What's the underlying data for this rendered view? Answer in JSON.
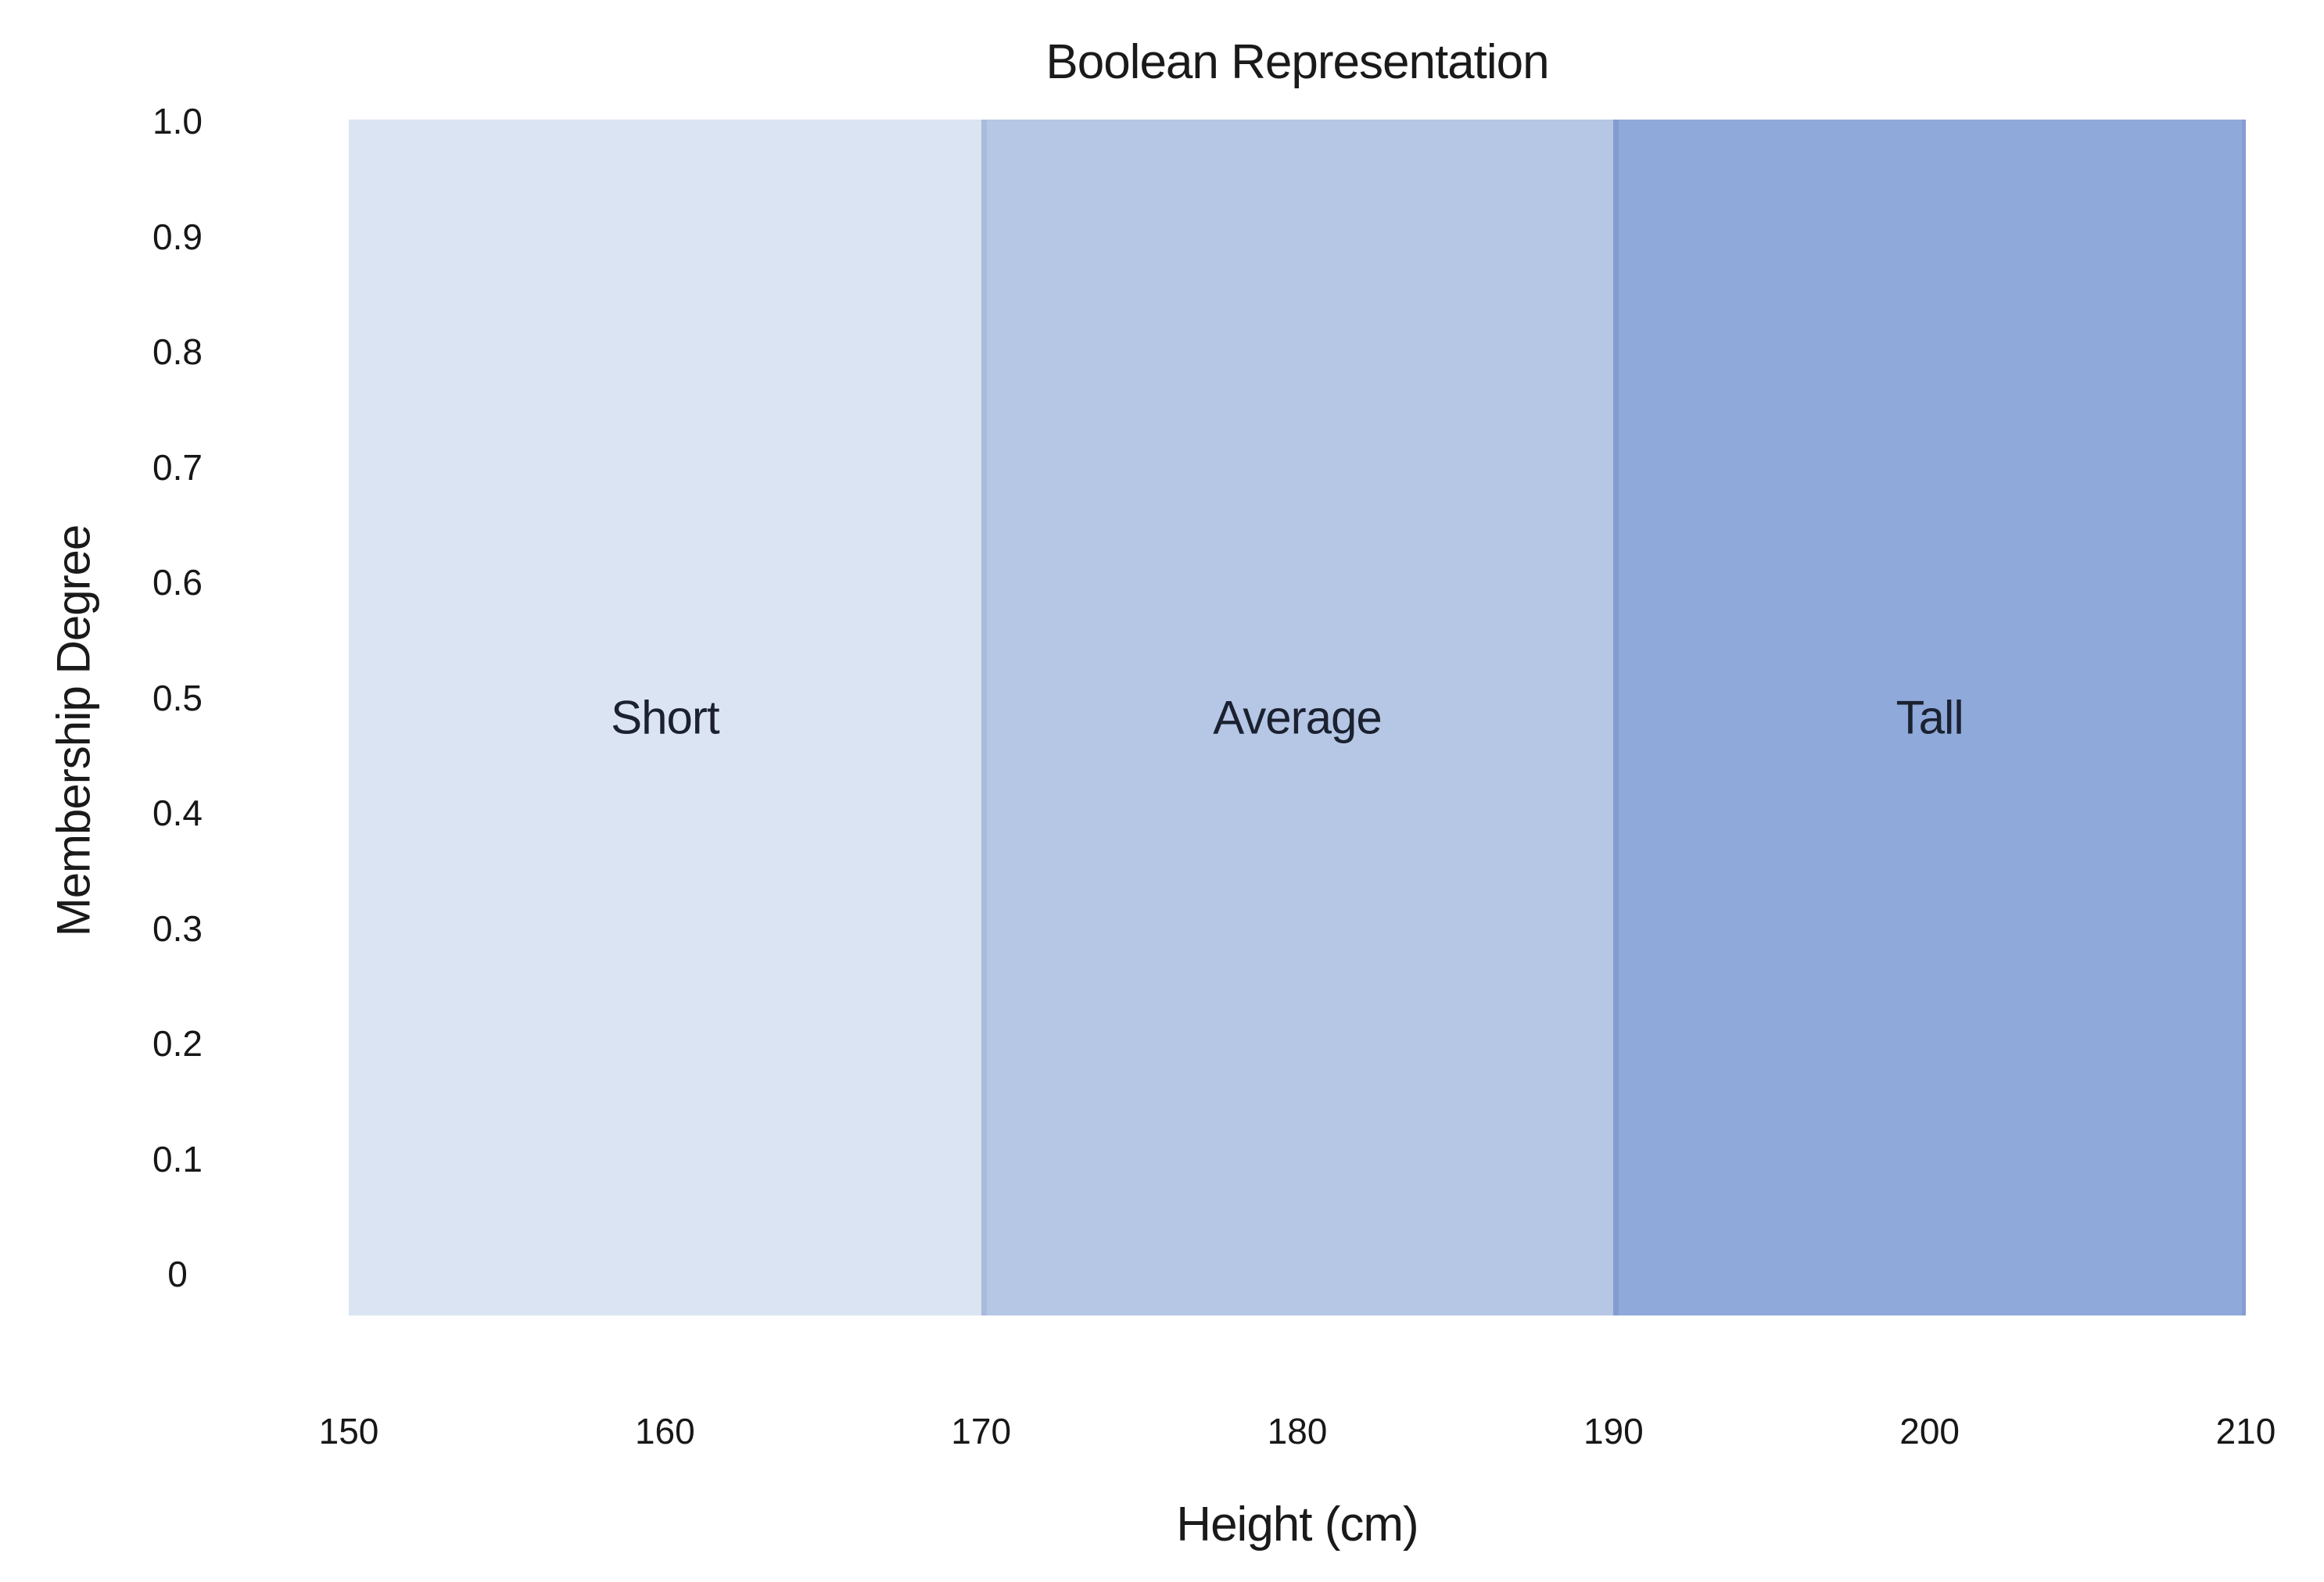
{
  "chart_data": {
    "type": "area",
    "title": "Boolean Representation",
    "xlabel": "Height (cm)",
    "ylabel": "Membership Degree",
    "xlim": [
      150,
      210
    ],
    "ylim": [
      0,
      1.0
    ],
    "grid": false,
    "legend": "none",
    "x_ticks": [
      "150",
      "160",
      "170",
      "180",
      "190",
      "200",
      "210"
    ],
    "y_ticks": [
      "1.0",
      "0.9",
      "0.8",
      "0.7",
      "0.6",
      "0.5",
      "0.4",
      "0.3",
      "0.2",
      "0.1",
      "0"
    ],
    "regions": [
      {
        "label": "Short",
        "x_start": 150,
        "x_end": 170,
        "membership": 1.0,
        "fill": "#dbe4f2"
      },
      {
        "label": "Average",
        "x_start": 170,
        "x_end": 190,
        "membership": 1.0,
        "fill": "#b5c7e5"
      },
      {
        "label": "Tall",
        "x_start": 190,
        "x_end": 210,
        "membership": 1.0,
        "fill": "#8fa9da"
      }
    ],
    "text_color": "#1a1a1a",
    "background_color": "#ffffff"
  }
}
